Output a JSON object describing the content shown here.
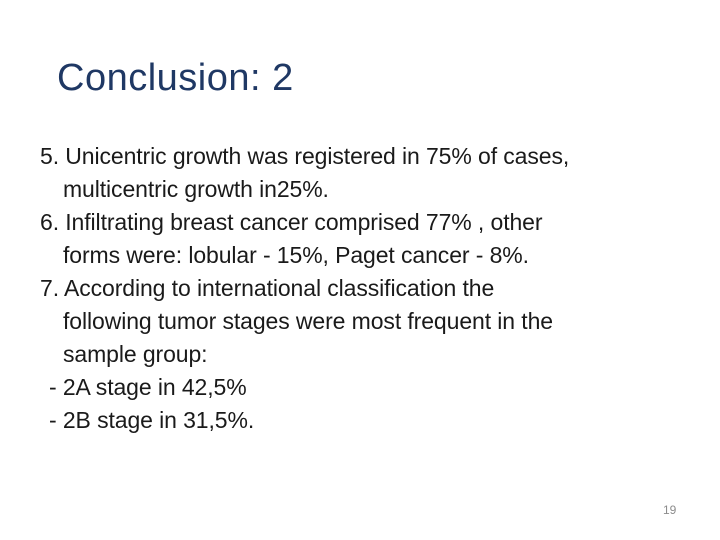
{
  "slide": {
    "title": "Conclusion: 2",
    "body_lines": [
      {
        "kind": "item",
        "text": "5. Unicentric growth was registered in 75% of cases,"
      },
      {
        "kind": "wrap",
        "text": "multicentric growth in25%."
      },
      {
        "kind": "item",
        "text": "6. Infiltrating breast cancer comprised 77% , other"
      },
      {
        "kind": "wrap",
        "text": "forms were: lobular - 15%, Paget cancer - 8%."
      },
      {
        "kind": "item",
        "text": "7. According to international classification the"
      },
      {
        "kind": "wrap",
        "text": "following tumor stages were most frequent in the"
      },
      {
        "kind": "wrap",
        "text": "sample group:"
      },
      {
        "kind": "dash",
        "text": "- 2A stage in 42,5%"
      },
      {
        "kind": "dash",
        "text": "- 2B stage in 31,5%."
      }
    ],
    "page_number": "19",
    "colors": {
      "background": "#ffffff",
      "title": "#1f3864",
      "body": "#1a1a1a",
      "page_number": "#8c8c8c"
    }
  }
}
